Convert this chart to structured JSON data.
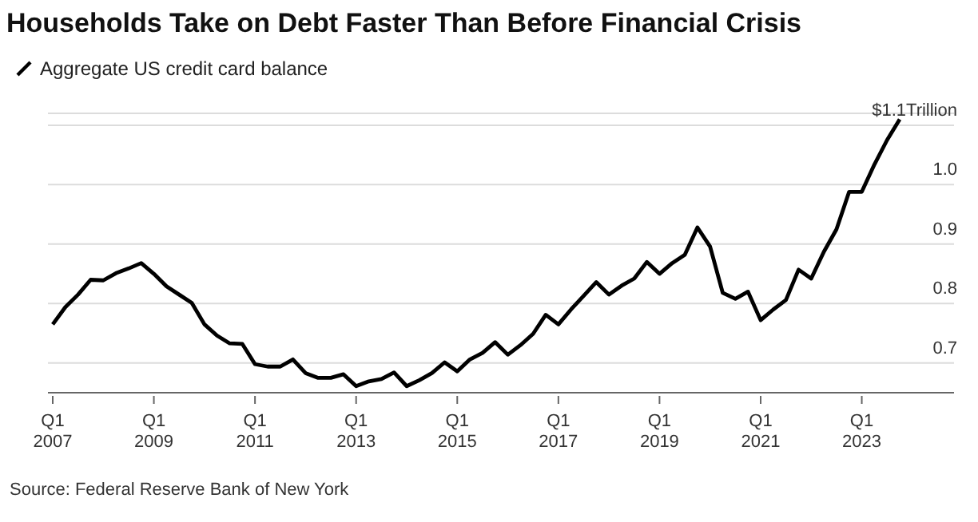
{
  "chart_data": {
    "type": "line",
    "title": "Households Take on Debt Faster Than Before Financial Crisis",
    "categories": [
      "Q1 2007",
      null,
      null,
      null,
      null,
      null,
      null,
      null,
      "Q1 2009",
      null,
      null,
      null,
      null,
      null,
      null,
      null,
      "Q1 2011",
      null,
      null,
      null,
      null,
      null,
      null,
      null,
      "Q1 2013",
      null,
      null,
      null,
      null,
      null,
      null,
      null,
      "Q1 2015",
      null,
      null,
      null,
      null,
      null,
      null,
      null,
      "Q1 2017",
      null,
      null,
      null,
      null,
      null,
      null,
      null,
      "Q1 2019",
      null,
      null,
      null,
      null,
      null,
      null,
      null,
      "Q1 2021",
      null,
      null,
      null,
      null,
      null,
      null,
      null,
      "Q1 2023",
      null,
      null,
      null
    ],
    "series": [
      {
        "name": "Aggregate US credit card balance",
        "color": "#000000",
        "values": [
          0.765,
          0.794,
          0.815,
          0.84,
          0.839,
          0.851,
          0.859,
          0.868,
          0.85,
          0.829,
          0.815,
          0.801,
          0.765,
          0.746,
          0.733,
          0.732,
          0.698,
          0.694,
          0.694,
          0.706,
          0.683,
          0.675,
          0.675,
          0.681,
          0.661,
          0.669,
          0.673,
          0.684,
          0.661,
          0.671,
          0.683,
          0.701,
          0.686,
          0.706,
          0.717,
          0.735,
          0.714,
          0.73,
          0.749,
          0.781,
          0.765,
          0.79,
          0.813,
          0.836,
          0.815,
          0.83,
          0.842,
          0.87,
          0.85,
          0.868,
          0.882,
          0.928,
          0.896,
          0.818,
          0.808,
          0.82,
          0.772,
          0.79,
          0.806,
          0.857,
          0.842,
          0.887,
          0.925,
          0.988,
          0.988,
          1.034,
          1.075,
          1.11
        ]
      }
    ],
    "ylim": [
      0.65,
      1.12
    ],
    "yticks": [
      0.7,
      0.8,
      0.9,
      {
        "value": 1,
        "label": "1.0"
      },
      {
        "value": 1.1,
        "label": "$1.1Trillion"
      }
    ],
    "grid": "y",
    "legend": "top left",
    "marker": "none",
    "line_style": "solid",
    "annotations": [
      "Source: Federal Reserve Bank of New York"
    ]
  }
}
